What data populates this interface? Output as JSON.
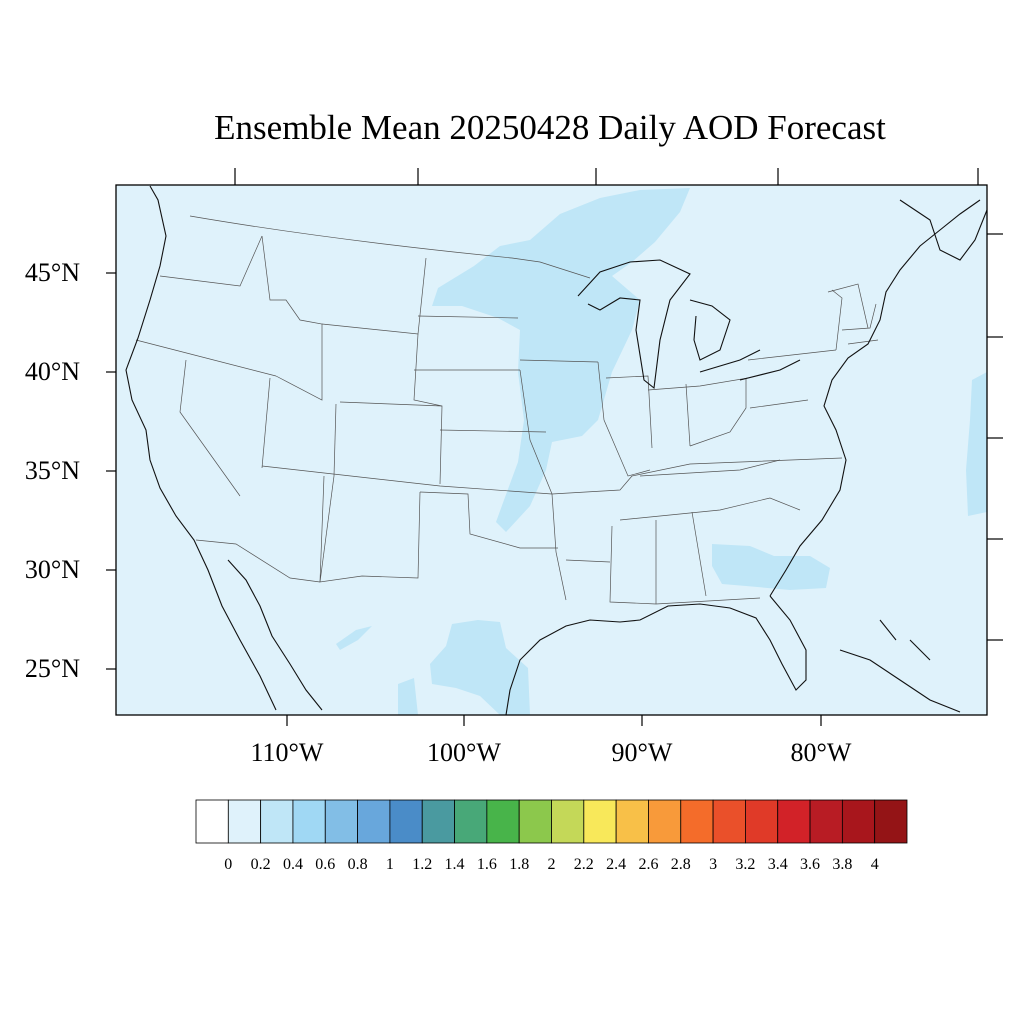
{
  "title": "Ensemble Mean 20250428 Daily AOD Forecast",
  "axes": {
    "lat_labels": [
      "45°N",
      "40°N",
      "35°N",
      "30°N",
      "25°N"
    ],
    "lon_labels": [
      "110°W",
      "100°W",
      "90°W",
      "80°W"
    ],
    "lat_range": [
      22.6,
      49.4
    ],
    "lon_range": [
      -119.5,
      -70.5
    ]
  },
  "colorbar": {
    "labels": [
      "0",
      "0.2",
      "0.4",
      "0.6",
      "0.8",
      "1",
      "1.2",
      "1.4",
      "1.6",
      "1.8",
      "2",
      "2.2",
      "2.4",
      "2.6",
      "2.8",
      "3",
      "3.2",
      "3.4",
      "3.6",
      "3.8",
      "4"
    ],
    "colors": [
      "#ffffff",
      "#dff2fb",
      "#bfe6f7",
      "#a0d8f4",
      "#82bee6",
      "#68a7dc",
      "#4a8cc8",
      "#4a9aa0",
      "#48a878",
      "#48b44a",
      "#8cc84c",
      "#c4d858",
      "#f8e85a",
      "#f8c048",
      "#f89a3a",
      "#f46c2a",
      "#ea502a",
      "#e03a28",
      "#d22228",
      "#b81c24",
      "#a8161c",
      "#941416"
    ]
  },
  "aod_field": {
    "background_value": 0.1,
    "enhanced_regions": [
      {
        "name": "Northern Plains to Great Lakes band",
        "value": 0.3
      },
      {
        "name": "Southern Texas",
        "value": 0.3
      },
      {
        "name": "Northern Florida / Georgia",
        "value": 0.3
      },
      {
        "name": "Western Atlantic strip",
        "value": 0.3
      }
    ]
  }
}
